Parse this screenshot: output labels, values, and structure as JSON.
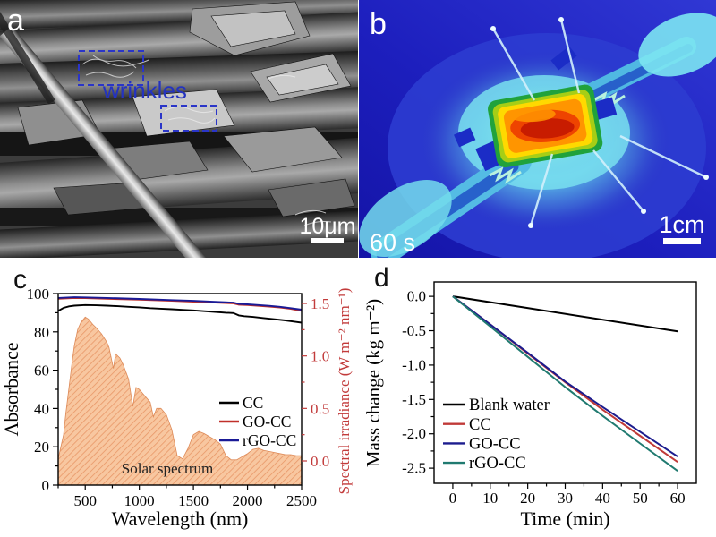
{
  "panels": {
    "a": {
      "letter": "a",
      "content": "sem-micrograph-carbon-cloth",
      "annotation": "wrinkles",
      "scale_bar_label": "10μm"
    },
    "b": {
      "letter": "b",
      "content": "infrared-thermal-image",
      "time_label": "60 s",
      "scale_bar_label": "1cm"
    },
    "c": {
      "letter": "c"
    },
    "d": {
      "letter": "d"
    }
  },
  "chart_data": [
    {
      "panel": "c",
      "type": "line",
      "xlabel": "Wavelength (nm)",
      "ylabel_left": "Absorbance",
      "ylabel_right": "Spectral irradiance (W m⁻² nm⁻¹)",
      "right_axis_color": "#c23b3b",
      "xlim": [
        250,
        2500
      ],
      "ylim_left": [
        0,
        100
      ],
      "yticks_right_range": [
        0.0,
        1.5
      ],
      "xticks": [
        500,
        1000,
        1500,
        2000,
        2500
      ],
      "yticks_left": [
        0,
        20,
        40,
        60,
        80,
        100
      ],
      "yticks_right": {
        "values": [
          0.0,
          0.5,
          1.0,
          1.5
        ],
        "labels": [
          "0.0",
          "0.5",
          "1.0",
          "1.5"
        ]
      },
      "annotation": "Solar spectrum",
      "legend": [
        {
          "name": "CC",
          "color": "#000000"
        },
        {
          "name": "GO-CC",
          "color": "#c0302a"
        },
        {
          "name": "rGO-CC",
          "color": "#1a1a96"
        }
      ],
      "series": [
        {
          "name": "CC",
          "color": "#000000",
          "axis": "left",
          "x": [
            250,
            300,
            350,
            400,
            500,
            600,
            700,
            800,
            900,
            1000,
            1100,
            1200,
            1300,
            1400,
            1500,
            1600,
            1700,
            1800,
            1870,
            1920,
            1970,
            2050,
            2150,
            2250,
            2350,
            2450,
            2500
          ],
          "y": [
            91.0,
            92.5,
            93.3,
            93.7,
            94.0,
            93.9,
            93.7,
            93.4,
            93.1,
            92.8,
            92.4,
            92.1,
            91.8,
            91.5,
            91.2,
            90.8,
            90.4,
            90.0,
            89.8,
            88.6,
            88.2,
            87.8,
            87.2,
            86.6,
            86.0,
            85.2,
            84.8
          ]
        },
        {
          "name": "GO-CC",
          "color": "#c0302a",
          "axis": "left",
          "x": [
            250,
            400,
            500,
            700,
            1000,
            1300,
            1500,
            1700,
            1870,
            1920,
            2000,
            2100,
            2200,
            2300,
            2400,
            2500
          ],
          "y": [
            97.3,
            97.7,
            97.6,
            97.3,
            96.8,
            96.2,
            95.8,
            95.3,
            94.9,
            94.2,
            94.0,
            93.6,
            93.2,
            92.7,
            92.0,
            91.0
          ]
        },
        {
          "name": "rGO-CC",
          "color": "#1a1a96",
          "axis": "left",
          "x": [
            250,
            400,
            500,
            700,
            1000,
            1300,
            1500,
            1700,
            1870,
            1920,
            2000,
            2100,
            2200,
            2300,
            2400,
            2500
          ],
          "y": [
            97.7,
            98.1,
            98.0,
            97.7,
            97.2,
            96.6,
            96.2,
            95.7,
            95.3,
            94.6,
            94.4,
            94.0,
            93.6,
            93.1,
            92.4,
            91.6
          ]
        },
        {
          "name": "Solar spectrum",
          "type": "area",
          "axis": "right",
          "fill_color": "#f8c7a0",
          "hatch_color": "#e89767",
          "edge_color": "#dd8a58",
          "x": [
            250,
            300,
            320,
            350,
            380,
            400,
            430,
            460,
            500,
            530,
            570,
            600,
            650,
            700,
            720,
            760,
            780,
            820,
            850,
            900,
            940,
            970,
            1000,
            1050,
            1100,
            1130,
            1160,
            1200,
            1250,
            1300,
            1350,
            1400,
            1450,
            1500,
            1550,
            1600,
            1650,
            1700,
            1750,
            1800,
            1850,
            1900,
            1950,
            2000,
            2050,
            2100,
            2150,
            2200,
            2250,
            2300,
            2350,
            2400,
            2450,
            2500
          ],
          "y": [
            0.02,
            0.25,
            0.45,
            0.7,
            0.95,
            1.1,
            1.25,
            1.32,
            1.37,
            1.35,
            1.3,
            1.27,
            1.21,
            1.13,
            1.08,
            0.88,
            1.02,
            0.98,
            0.92,
            0.78,
            0.52,
            0.7,
            0.68,
            0.62,
            0.56,
            0.42,
            0.5,
            0.5,
            0.44,
            0.3,
            0.05,
            0.02,
            0.12,
            0.25,
            0.28,
            0.26,
            0.23,
            0.2,
            0.16,
            0.05,
            0.01,
            0.01,
            0.04,
            0.07,
            0.11,
            0.12,
            0.1,
            0.09,
            0.08,
            0.07,
            0.06,
            0.06,
            0.05,
            0.05
          ]
        }
      ]
    },
    {
      "panel": "d",
      "type": "line",
      "xlabel": "Time (min)",
      "ylabel": "Mass change (kg m⁻²)",
      "xlim": [
        -5,
        65
      ],
      "ylim": [
        -2.72,
        0.21
      ],
      "xticks": [
        0,
        10,
        20,
        30,
        40,
        50,
        60
      ],
      "yticks": {
        "values": [
          0.0,
          -0.5,
          -1.0,
          -1.5,
          -2.0,
          -2.5
        ],
        "labels": [
          "0.0",
          "-0.5",
          "-1.0",
          "-1.5",
          "-2.0",
          "-2.5"
        ]
      },
      "legend": [
        {
          "name": "Blank water",
          "color": "#000000"
        },
        {
          "name": "CC",
          "color": "#c03a38"
        },
        {
          "name": "GO-CC",
          "color": "#1c1c8e"
        },
        {
          "name": "rGO-CC",
          "color": "#207a70"
        }
      ],
      "series": [
        {
          "name": "Blank water",
          "color": "#000000",
          "x": [
            0,
            60
          ],
          "y": [
            0.0,
            -0.51
          ]
        },
        {
          "name": "CC",
          "color": "#c03a38",
          "x": [
            0,
            10,
            20,
            30,
            40,
            50,
            60
          ],
          "y": [
            0.0,
            -0.41,
            -0.83,
            -1.25,
            -1.65,
            -2.03,
            -2.41
          ]
        },
        {
          "name": "GO-CC",
          "color": "#1c1c8e",
          "x": [
            0,
            10,
            20,
            30,
            40,
            50,
            60
          ],
          "y": [
            0.0,
            -0.41,
            -0.82,
            -1.24,
            -1.61,
            -1.97,
            -2.33
          ]
        },
        {
          "name": "rGO-CC",
          "color": "#207a70",
          "x": [
            0,
            10,
            20,
            30,
            40,
            50,
            60
          ],
          "y": [
            0.0,
            -0.44,
            -0.88,
            -1.32,
            -1.74,
            -2.14,
            -2.54
          ]
        }
      ]
    }
  ]
}
